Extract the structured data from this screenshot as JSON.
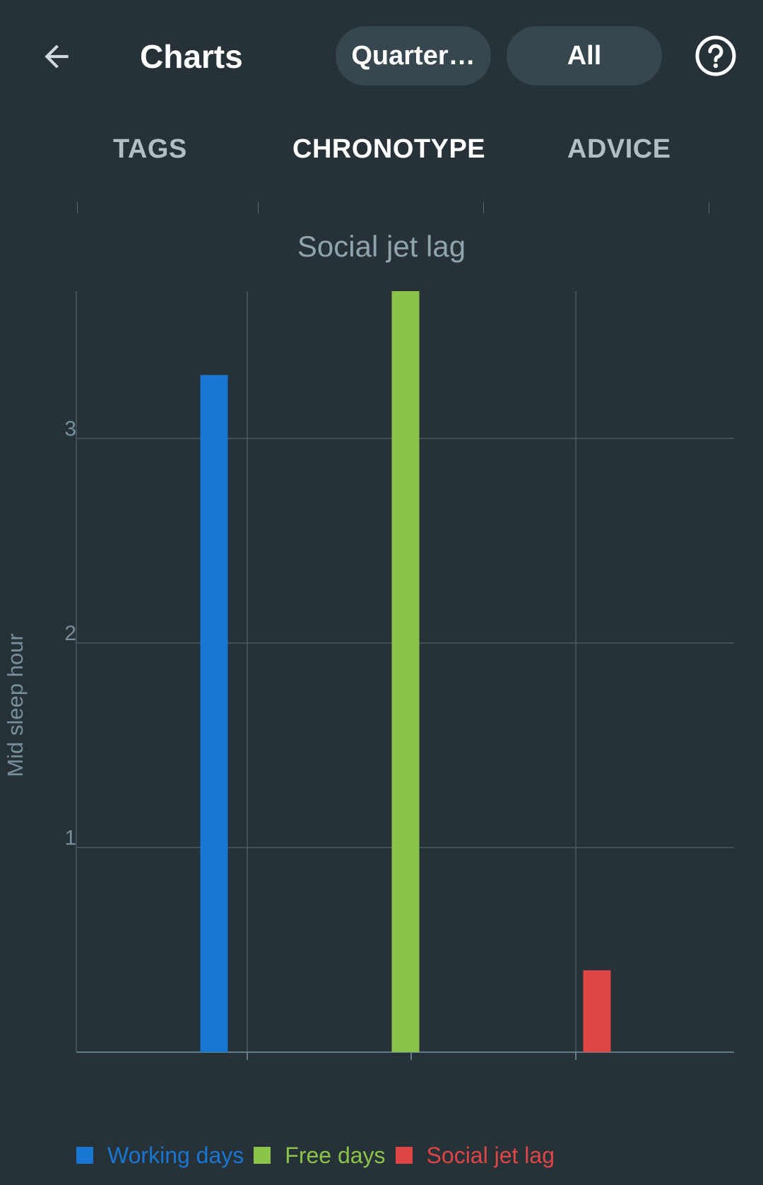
{
  "header": {
    "title": "Charts",
    "period_pill": "Quarter…",
    "filter_pill": "All",
    "back_icon": "arrow-left-icon",
    "help_icon": "help-circle-icon"
  },
  "tabs": [
    {
      "label": "TAGS",
      "active": false
    },
    {
      "label": "CHRONOTYPE",
      "active": true
    },
    {
      "label": "ADVICE",
      "active": false
    }
  ],
  "colors": {
    "background": "#263238",
    "grid": "#4a5a62",
    "axis_text": "#78909c",
    "working": "#1976d2",
    "free": "#8bc34a",
    "jetlag": "#e04545"
  },
  "chart_data": {
    "type": "bar",
    "title": "Social jet lag",
    "xlabel": "",
    "ylabel": "Mid sleep hour",
    "ylim": [
      0,
      3.72
    ],
    "yticks": [
      1,
      2,
      3
    ],
    "grid": true,
    "legend_position": "bottom-left",
    "series": [
      {
        "name": "Working days",
        "value": 3.31,
        "color": "#1976d2"
      },
      {
        "name": "Free days",
        "value": 3.72,
        "color": "#8bc34a"
      },
      {
        "name": "Social jet lag",
        "value": 0.4,
        "color": "#e04545"
      }
    ]
  }
}
